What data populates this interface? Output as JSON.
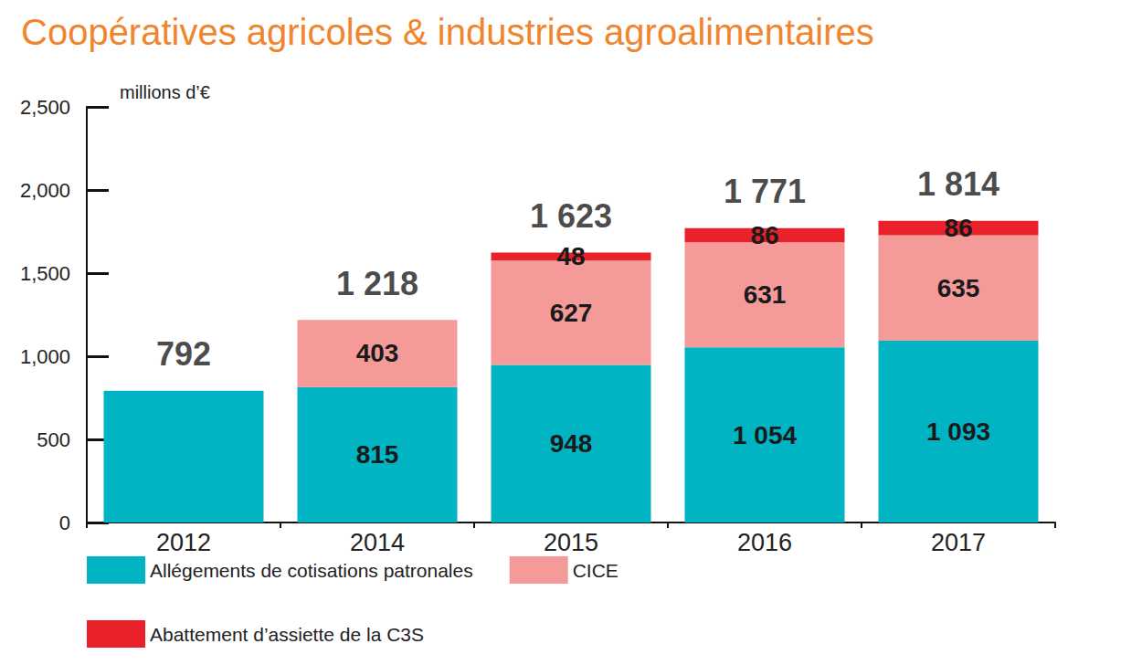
{
  "chart_data": {
    "type": "bar",
    "title": "Coopératives agricoles & industries agroalimentaires",
    "y_label": "millions d’€",
    "categories": [
      "2012",
      "2014",
      "2015",
      "2016",
      "2017"
    ],
    "series": [
      {
        "name": "Allégements de cotisations patronales",
        "color": "#00b4c3",
        "values": [
          792,
          815,
          948,
          1054,
          1093
        ],
        "value_labels": [
          null,
          "815",
          "948",
          "1 054",
          "1 093"
        ]
      },
      {
        "name": "CICE",
        "color": "#f49b9a",
        "values": [
          null,
          403,
          627,
          631,
          635
        ]
      },
      {
        "name": "Abattement d’assiette de la C3S",
        "color": "#e8212b",
        "values": [
          null,
          null,
          48,
          86,
          86
        ]
      }
    ],
    "totals": [
      792,
      1218,
      1623,
      1771,
      1814
    ],
    "total_labels": [
      "792",
      "1 218",
      "1 623",
      "1 771",
      "1 814"
    ],
    "ylim": [
      0,
      2500
    ],
    "yticks": [
      0,
      500,
      1000,
      1500,
      2000,
      2500
    ],
    "stacked": true,
    "data_labels": true,
    "grid": false,
    "legend": "bottom"
  }
}
